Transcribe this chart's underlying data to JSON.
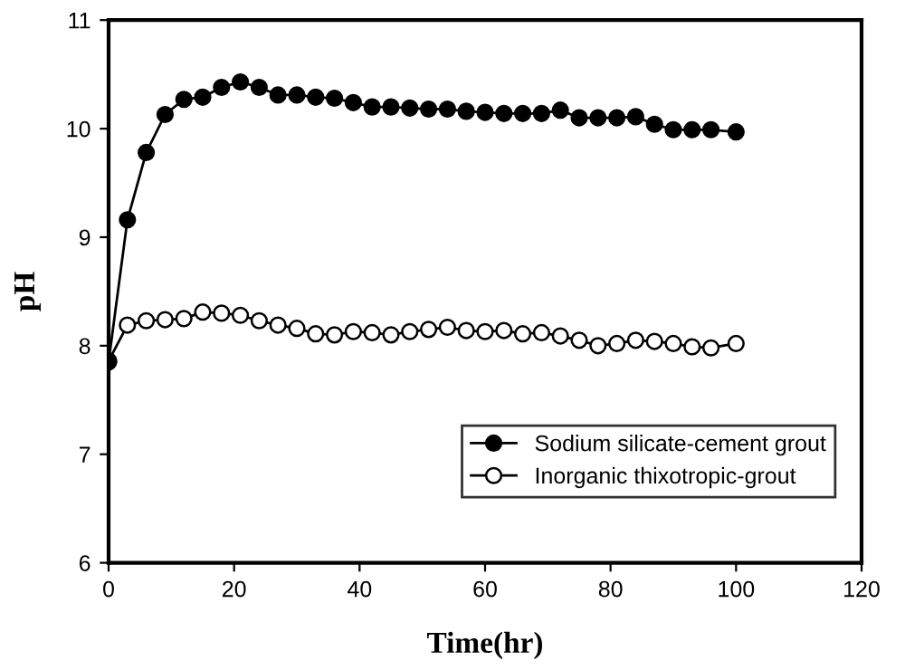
{
  "chart_data": {
    "type": "line",
    "xlabel": "Time(hr)",
    "ylabel": "pH",
    "x": [
      0,
      3,
      6,
      9,
      12,
      15,
      18,
      21,
      24,
      27,
      30,
      33,
      36,
      39,
      42,
      45,
      48,
      51,
      54,
      57,
      60,
      63,
      66,
      69,
      72,
      75,
      78,
      81,
      84,
      87,
      90,
      93,
      96,
      100
    ],
    "series": [
      {
        "name": "Sodium silicate-cement grout",
        "color": "#000000",
        "marker": "circle",
        "values": [
          7.85,
          9.16,
          9.78,
          10.13,
          10.27,
          10.29,
          10.38,
          10.43,
          10.38,
          10.31,
          10.31,
          10.29,
          10.28,
          10.24,
          10.2,
          10.2,
          10.19,
          10.18,
          10.18,
          10.16,
          10.15,
          10.14,
          10.14,
          10.14,
          10.17,
          10.1,
          10.1,
          10.1,
          10.11,
          10.04,
          9.99,
          9.99,
          9.99,
          9.97
        ]
      },
      {
        "name": "Inorganic thixotropic-grout",
        "color": "#ffffff",
        "marker": "circle",
        "values": [
          7.86,
          8.19,
          8.23,
          8.24,
          8.25,
          8.31,
          8.3,
          8.28,
          8.23,
          8.19,
          8.16,
          8.11,
          8.1,
          8.13,
          8.12,
          8.1,
          8.13,
          8.15,
          8.17,
          8.14,
          8.13,
          8.14,
          8.11,
          8.12,
          8.09,
          8.05,
          8.0,
          8.02,
          8.05,
          8.04,
          8.02,
          7.99,
          7.98,
          8.02
        ]
      }
    ],
    "xlim": [
      0,
      120
    ],
    "xticks": [
      0,
      20,
      40,
      60,
      80,
      100,
      120
    ],
    "ylim": [
      6,
      11
    ],
    "yticks": [
      6,
      7,
      8,
      9,
      10,
      11
    ],
    "grid": false,
    "legend": "bottom right"
  }
}
